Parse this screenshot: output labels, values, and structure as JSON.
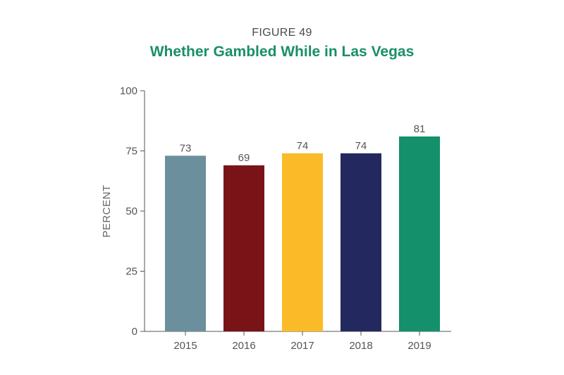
{
  "figure_label": "FIGURE 49",
  "chart_data": {
    "type": "bar",
    "title": "Whether Gambled While in Las Vegas",
    "xlabel": "",
    "ylabel": "PERCENT",
    "ylim": [
      0,
      100
    ],
    "yticks": [
      0,
      25,
      50,
      75,
      100
    ],
    "categories": [
      "2015",
      "2016",
      "2017",
      "2018",
      "2019"
    ],
    "values": [
      73,
      69,
      74,
      74,
      81
    ],
    "colors": [
      "#6b8f9c",
      "#7a1318",
      "#fbbb28",
      "#23295e",
      "#14906b"
    ],
    "grid": false,
    "legend": "none"
  }
}
